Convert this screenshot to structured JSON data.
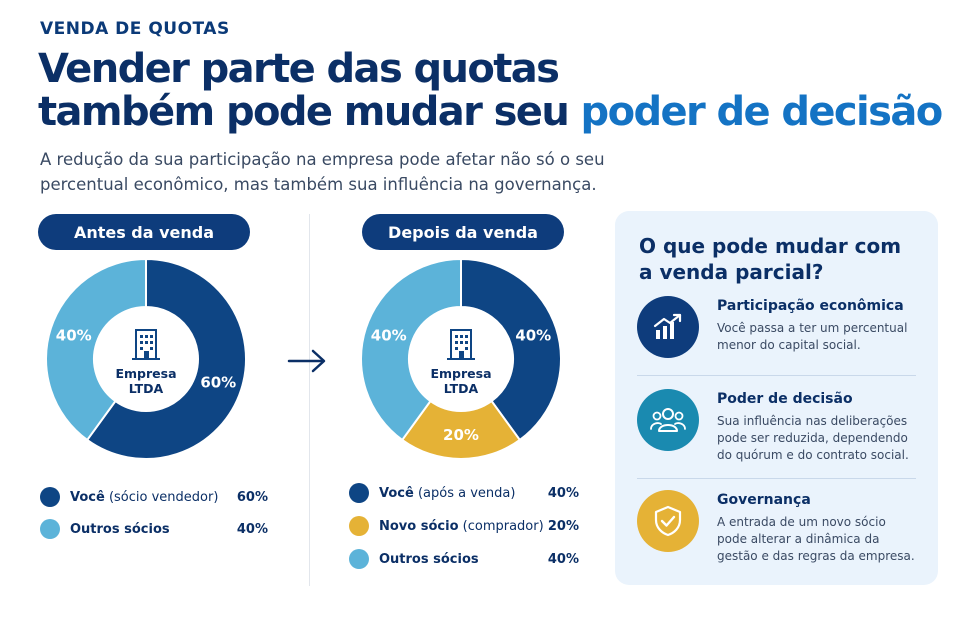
{
  "header": {
    "eyebrow": "VENDA DE QUOTAS",
    "headline_line1": "Vender parte das quotas",
    "headline_line2_plain": "também pode mudar seu ",
    "headline_line2_accent": "poder de decisão",
    "subtitle": "A redução da sua participação na empresa pode afetar não só o seu percentual econômico, mas também sua influência na governança."
  },
  "colors": {
    "navy": "#0e4584",
    "light_blue": "#5cb3d9",
    "gold": "#e5b236",
    "accent": "#1473c4",
    "teal": "#1a8ab0"
  },
  "center_label": {
    "line1": "Empresa",
    "line2": "LTDA",
    "icon": "building-icon"
  },
  "arrow_icon": "arrow-right-icon",
  "chart_data": [
    {
      "type": "pie",
      "title": "Antes da venda",
      "slices": [
        {
          "label": "Você",
          "label_note": "(sócio vendedor)",
          "value": 60,
          "display": "60%",
          "color": "#0e4584"
        },
        {
          "label": "Outros sócios",
          "label_note": "",
          "value": 40,
          "display": "40%",
          "color": "#5cb3d9"
        }
      ]
    },
    {
      "type": "pie",
      "title": "Depois da venda",
      "slices": [
        {
          "label": "Você",
          "label_note": "(após a venda)",
          "value": 40,
          "display": "40%",
          "color": "#0e4584"
        },
        {
          "label": "Novo sócio",
          "label_note": "(comprador)",
          "value": 20,
          "display": "20%",
          "color": "#e5b236"
        },
        {
          "label": "Outros sócios",
          "label_note": "",
          "value": 40,
          "display": "40%",
          "color": "#5cb3d9"
        }
      ]
    }
  ],
  "panel": {
    "title": "O que pode mudar com a venda parcial?",
    "items": [
      {
        "title": "Participação econômica",
        "text": "Você passa a ter um percentual menor do capital social.",
        "icon": "growth-chart-icon",
        "color": "#0e3c7c"
      },
      {
        "title": "Poder de decisão",
        "text": "Sua influência nas deliberações pode ser reduzida, dependendo do quórum e do contrato social.",
        "icon": "people-group-icon",
        "color": "#1a8ab0"
      },
      {
        "title": "Governança",
        "text": "A entrada de um novo sócio pode alterar a dinâmica da gestão e das regras da empresa.",
        "icon": "shield-check-icon",
        "color": "#e5b236"
      }
    ]
  }
}
